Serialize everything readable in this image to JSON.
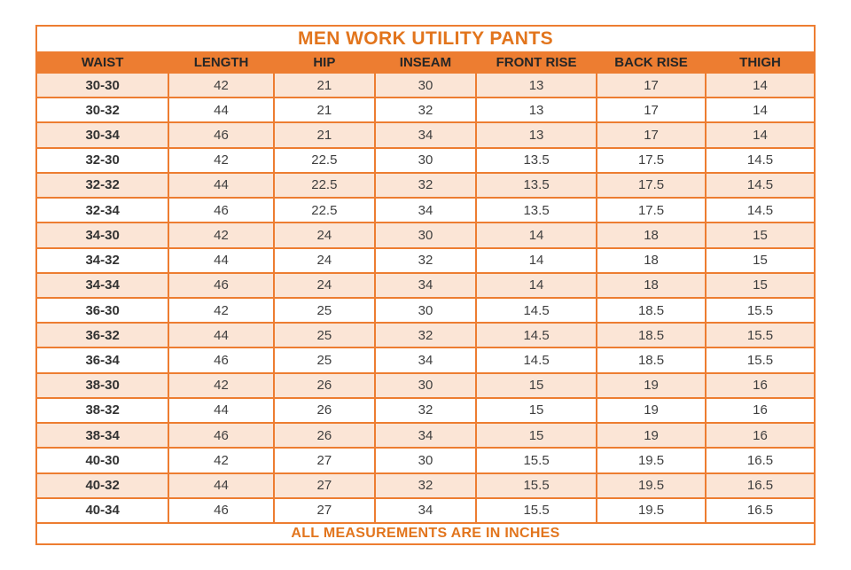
{
  "chart_data": {
    "type": "table",
    "title": "MEN WORK UTILITY PANTS",
    "footer": "ALL MEASUREMENTS ARE IN INCHES",
    "columns": [
      "WAIST",
      "LENGTH",
      "HIP",
      "INSEAM",
      "FRONT RISE",
      "BACK RISE",
      "THIGH"
    ],
    "rows": [
      [
        "30-30",
        "42",
        "21",
        "30",
        "13",
        "17",
        "14"
      ],
      [
        "30-32",
        "44",
        "21",
        "32",
        "13",
        "17",
        "14"
      ],
      [
        "30-34",
        "46",
        "21",
        "34",
        "13",
        "17",
        "14"
      ],
      [
        "32-30",
        "42",
        "22.5",
        "30",
        "13.5",
        "17.5",
        "14.5"
      ],
      [
        "32-32",
        "44",
        "22.5",
        "32",
        "13.5",
        "17.5",
        "14.5"
      ],
      [
        "32-34",
        "46",
        "22.5",
        "34",
        "13.5",
        "17.5",
        "14.5"
      ],
      [
        "34-30",
        "42",
        "24",
        "30",
        "14",
        "18",
        "15"
      ],
      [
        "34-32",
        "44",
        "24",
        "32",
        "14",
        "18",
        "15"
      ],
      [
        "34-34",
        "46",
        "24",
        "34",
        "14",
        "18",
        "15"
      ],
      [
        "36-30",
        "42",
        "25",
        "30",
        "14.5",
        "18.5",
        "15.5"
      ],
      [
        "36-32",
        "44",
        "25",
        "32",
        "14.5",
        "18.5",
        "15.5"
      ],
      [
        "36-34",
        "46",
        "25",
        "34",
        "14.5",
        "18.5",
        "15.5"
      ],
      [
        "38-30",
        "42",
        "26",
        "30",
        "15",
        "19",
        "16"
      ],
      [
        "38-32",
        "44",
        "26",
        "32",
        "15",
        "19",
        "16"
      ],
      [
        "38-34",
        "46",
        "26",
        "34",
        "15",
        "19",
        "16"
      ],
      [
        "40-30",
        "42",
        "27",
        "30",
        "15.5",
        "19.5",
        "16.5"
      ],
      [
        "40-32",
        "44",
        "27",
        "32",
        "15.5",
        "19.5",
        "16.5"
      ],
      [
        "40-34",
        "46",
        "27",
        "34",
        "15.5",
        "19.5",
        "16.5"
      ]
    ],
    "units": "INCHES"
  },
  "colors": {
    "accent_orange": "#ED7D31",
    "row_alt_peach": "#FBE5D6",
    "title_orange": "#E2751D",
    "header_text": "#262626",
    "body_text": "#3F3F3F"
  }
}
